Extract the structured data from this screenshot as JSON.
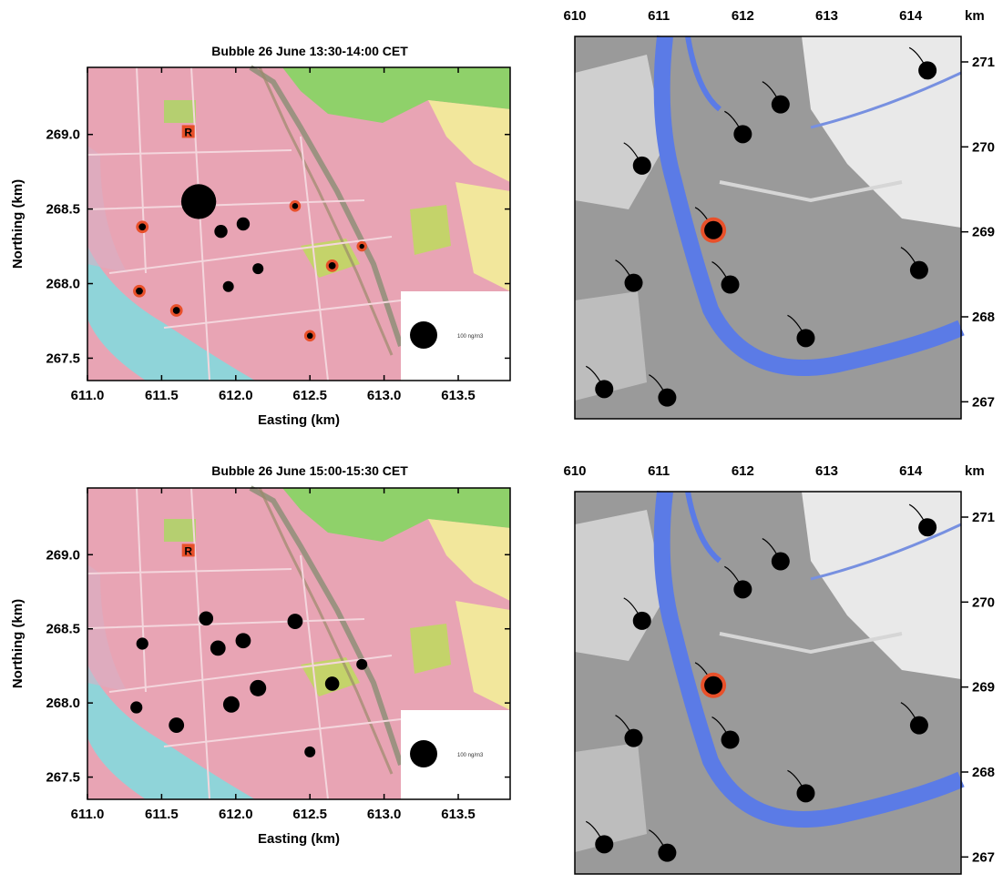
{
  "colors": {
    "map_pink": "#e8a4b4",
    "map_green": "#8fd16a",
    "map_yellow": "#f2e79c",
    "river_cyan": "#8fd4d9",
    "river_blue": "#5b7be6",
    "topo_gray": "#9a9a9a",
    "marker_black": "#000000",
    "marker_red": "#e8502a"
  },
  "left_axes": {
    "x_ticks": [
      "611.0",
      "611.5",
      "612.0",
      "612.5",
      "613.0",
      "613.5"
    ],
    "y_ticks": [
      "267.5",
      "268.0",
      "268.5",
      "269.0"
    ],
    "xlabel": "Easting (km)",
    "ylabel": "Northing (km)"
  },
  "right_axes": {
    "x_ticks": [
      "610",
      "611",
      "612",
      "613",
      "614"
    ],
    "x_unit": "km",
    "y_ticks": [
      "267",
      "268",
      "269",
      "270",
      "271"
    ]
  },
  "panels": [
    {
      "title": "Bubble 26 June 13:30-14:00 CET",
      "reference_marker": "R",
      "legend_label": "100 ng/m3",
      "chart_data": {
        "type": "scatter",
        "title": "Bubble 26 June 13:30-14:00 CET",
        "xlabel": "Easting (km)",
        "ylabel": "Northing (km)",
        "xlim": [
          611.0,
          613.85
        ],
        "ylim": [
          267.35,
          269.45
        ],
        "points": [
          {
            "x": 611.75,
            "y": 268.55,
            "size": 3.2,
            "outline": "black"
          },
          {
            "x": 611.9,
            "y": 268.35,
            "size": 1.2,
            "outline": "black"
          },
          {
            "x": 612.05,
            "y": 268.4,
            "size": 1.2,
            "outline": "black"
          },
          {
            "x": 612.15,
            "y": 268.1,
            "size": 1.0,
            "outline": "black"
          },
          {
            "x": 611.95,
            "y": 267.98,
            "size": 1.0,
            "outline": "black"
          },
          {
            "x": 612.4,
            "y": 268.52,
            "size": 0.8,
            "outline": "red"
          },
          {
            "x": 611.37,
            "y": 268.38,
            "size": 0.9,
            "outline": "red"
          },
          {
            "x": 611.35,
            "y": 267.95,
            "size": 0.9,
            "outline": "red"
          },
          {
            "x": 611.6,
            "y": 267.82,
            "size": 0.9,
            "outline": "red"
          },
          {
            "x": 612.65,
            "y": 268.12,
            "size": 0.9,
            "outline": "red"
          },
          {
            "x": 612.85,
            "y": 268.25,
            "size": 0.7,
            "outline": "red"
          },
          {
            "x": 612.5,
            "y": 267.65,
            "size": 0.8,
            "outline": "red"
          }
        ],
        "reference_site": {
          "x": 611.68,
          "y": 269.02,
          "label": "R"
        }
      }
    },
    {
      "title": "Bubble 26 June 15:00-15:30 CET",
      "reference_marker": "R",
      "legend_label": "100 ng/m3",
      "chart_data": {
        "type": "scatter",
        "title": "Bubble 26 June 15:00-15:30 CET",
        "xlabel": "Easting (km)",
        "ylabel": "Northing (km)",
        "xlim": [
          611.0,
          613.85
        ],
        "ylim": [
          267.35,
          269.45
        ],
        "points": [
          {
            "x": 611.8,
            "y": 268.57,
            "size": 1.3,
            "outline": "black"
          },
          {
            "x": 611.88,
            "y": 268.37,
            "size": 1.4,
            "outline": "black"
          },
          {
            "x": 612.05,
            "y": 268.42,
            "size": 1.4,
            "outline": "black"
          },
          {
            "x": 612.4,
            "y": 268.55,
            "size": 1.4,
            "outline": "black"
          },
          {
            "x": 611.37,
            "y": 268.4,
            "size": 1.1,
            "outline": "black"
          },
          {
            "x": 612.15,
            "y": 268.1,
            "size": 1.5,
            "outline": "black"
          },
          {
            "x": 611.97,
            "y": 267.99,
            "size": 1.5,
            "outline": "black"
          },
          {
            "x": 611.33,
            "y": 267.97,
            "size": 1.1,
            "outline": "black"
          },
          {
            "x": 611.6,
            "y": 267.85,
            "size": 1.4,
            "outline": "black"
          },
          {
            "x": 612.65,
            "y": 268.13,
            "size": 1.3,
            "outline": "black"
          },
          {
            "x": 612.85,
            "y": 268.26,
            "size": 1.0,
            "outline": "black"
          },
          {
            "x": 612.5,
            "y": 267.67,
            "size": 1.0,
            "outline": "black"
          }
        ],
        "reference_site": {
          "x": 611.68,
          "y": 269.03,
          "label": "R"
        }
      }
    }
  ],
  "right_maps": [
    {
      "sites": [
        {
          "x": 614.2,
          "y": 270.9,
          "highlight": false
        },
        {
          "x": 612.45,
          "y": 270.5,
          "highlight": false
        },
        {
          "x": 612.0,
          "y": 270.15,
          "highlight": false
        },
        {
          "x": 610.8,
          "y": 269.78,
          "highlight": false
        },
        {
          "x": 611.65,
          "y": 269.02,
          "highlight": true
        },
        {
          "x": 614.1,
          "y": 268.55,
          "highlight": false
        },
        {
          "x": 610.7,
          "y": 268.4,
          "highlight": false
        },
        {
          "x": 611.85,
          "y": 268.38,
          "highlight": false
        },
        {
          "x": 612.75,
          "y": 267.75,
          "highlight": false
        },
        {
          "x": 610.35,
          "y": 267.15,
          "highlight": false
        },
        {
          "x": 611.1,
          "y": 267.05,
          "highlight": false
        }
      ]
    },
    {
      "sites": [
        {
          "x": 614.2,
          "y": 270.88,
          "highlight": false
        },
        {
          "x": 612.45,
          "y": 270.48,
          "highlight": false
        },
        {
          "x": 612.0,
          "y": 270.15,
          "highlight": false
        },
        {
          "x": 610.8,
          "y": 269.78,
          "highlight": false
        },
        {
          "x": 611.65,
          "y": 269.02,
          "highlight": true
        },
        {
          "x": 614.1,
          "y": 268.55,
          "highlight": false
        },
        {
          "x": 610.7,
          "y": 268.4,
          "highlight": false
        },
        {
          "x": 611.85,
          "y": 268.38,
          "highlight": false
        },
        {
          "x": 612.75,
          "y": 267.75,
          "highlight": false
        },
        {
          "x": 610.35,
          "y": 267.15,
          "highlight": false
        },
        {
          "x": 611.1,
          "y": 267.05,
          "highlight": false
        }
      ]
    }
  ]
}
